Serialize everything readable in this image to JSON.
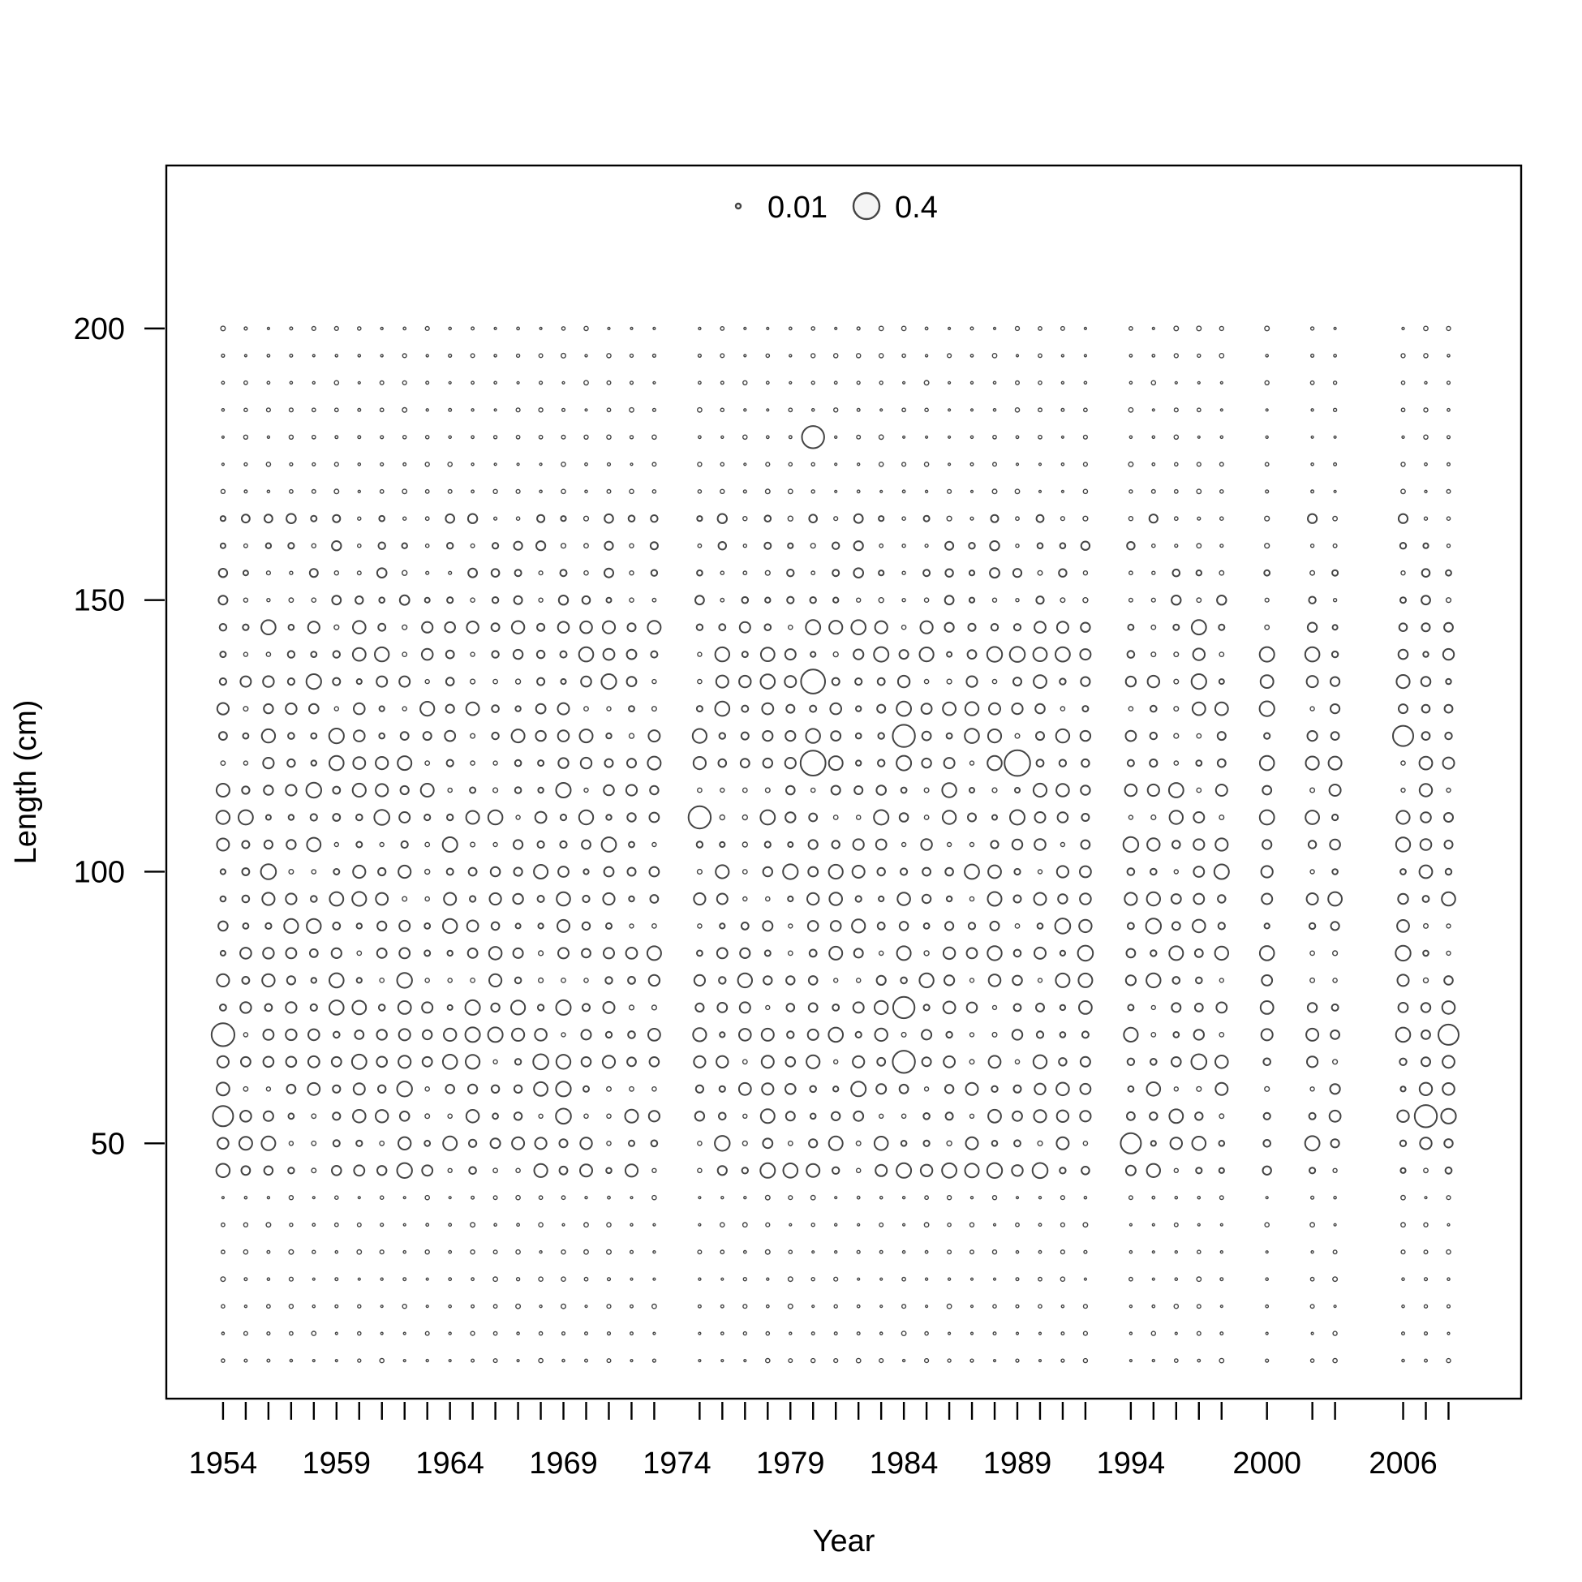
{
  "chart_data": {
    "type": "scatter",
    "subtype": "bubble",
    "title": "",
    "xlabel": "Year",
    "ylabel": "Length (cm)",
    "xlim": [
      1951.5,
      2011.2
    ],
    "ylim": [
      3,
      230
    ],
    "x_tick_labels": [
      1954,
      1959,
      1964,
      1969,
      1974,
      1979,
      1984,
      1989,
      1994,
      2000,
      2006
    ],
    "y_tick_labels": [
      50,
      100,
      150,
      200
    ],
    "years": [
      1954,
      1955,
      1956,
      1957,
      1958,
      1959,
      1960,
      1961,
      1962,
      1963,
      1964,
      1965,
      1966,
      1967,
      1968,
      1969,
      1970,
      1971,
      1972,
      1973,
      1975,
      1976,
      1977,
      1978,
      1979,
      1980,
      1981,
      1982,
      1983,
      1984,
      1985,
      1986,
      1987,
      1988,
      1989,
      1990,
      1991,
      1992,
      1994,
      1995,
      1996,
      1997,
      1998,
      2000,
      2002,
      2003,
      2006,
      2007,
      2008
    ],
    "length_bins_cm": [
      10,
      15,
      20,
      25,
      30,
      35,
      40,
      45,
      50,
      55,
      60,
      65,
      70,
      75,
      80,
      85,
      90,
      95,
      100,
      105,
      110,
      115,
      120,
      125,
      130,
      135,
      140,
      145,
      150,
      155,
      160,
      165,
      170,
      175,
      180,
      185,
      190,
      195,
      200
    ],
    "legend": [
      {
        "value": 0.01,
        "label": "0.01"
      },
      {
        "value": 0.4,
        "label": "0.4"
      }
    ],
    "legend_position": "top-center",
    "grid": false,
    "highlighted_points": [
      {
        "year": 1980,
        "length": 180,
        "size": 0.3
      },
      {
        "year": 1989,
        "length": 120,
        "size": 0.4
      },
      {
        "year": 1980,
        "length": 135,
        "size": 0.35
      },
      {
        "year": 1980,
        "length": 120,
        "size": 0.38
      },
      {
        "year": 1975,
        "length": 110,
        "size": 0.3
      },
      {
        "year": 1954,
        "length": 70,
        "size": 0.32
      },
      {
        "year": 1954,
        "length": 55,
        "size": 0.25
      },
      {
        "year": 1984,
        "length": 65,
        "size": 0.3
      },
      {
        "year": 1984,
        "length": 125,
        "size": 0.3
      },
      {
        "year": 1984,
        "length": 75,
        "size": 0.28
      },
      {
        "year": 1994,
        "length": 50,
        "size": 0.25
      },
      {
        "year": 2007,
        "length": 55,
        "size": 0.3
      },
      {
        "year": 2008,
        "length": 70,
        "size": 0.25
      },
      {
        "year": 2006,
        "length": 125,
        "size": 0.25
      }
    ]
  }
}
